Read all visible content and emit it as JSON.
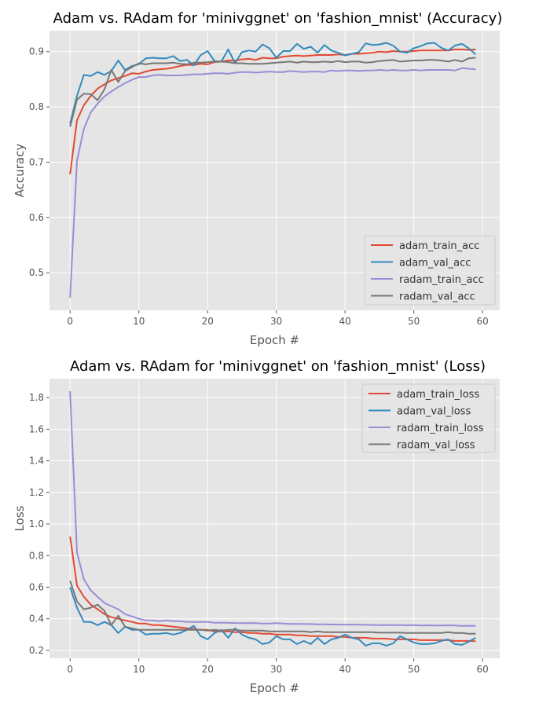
{
  "chart_data": [
    {
      "type": "line",
      "title": "Adam vs. RAdam for 'minivggnet' on 'fashion_mnist' (Accuracy)",
      "xlabel": "Epoch #",
      "ylabel": "Accuracy",
      "xlim": [
        -3,
        62.5
      ],
      "ylim": [
        0.432,
        0.938
      ],
      "xticks": [
        "0",
        "10",
        "20",
        "30",
        "40",
        "50",
        "60"
      ],
      "yticks": [
        "0.5",
        "0.6",
        "0.7",
        "0.8",
        "0.9"
      ],
      "grid": true,
      "legend": "lower-right",
      "series": [
        {
          "name": "adam_train_acc",
          "color": "#E24A33",
          "values": [
            0.678,
            0.776,
            0.803,
            0.82,
            0.833,
            0.841,
            0.848,
            0.852,
            0.856,
            0.861,
            0.86,
            0.864,
            0.867,
            0.868,
            0.869,
            0.871,
            0.874,
            0.876,
            0.876,
            0.878,
            0.877,
            0.881,
            0.882,
            0.884,
            0.884,
            0.886,
            0.887,
            0.885,
            0.889,
            0.888,
            0.888,
            0.891,
            0.892,
            0.893,
            0.892,
            0.893,
            0.894,
            0.894,
            0.894,
            0.895,
            0.894,
            0.896,
            0.896,
            0.897,
            0.898,
            0.9,
            0.899,
            0.901,
            0.9,
            0.9,
            0.901,
            0.902,
            0.902,
            0.902,
            0.902,
            0.902,
            0.904,
            0.904,
            0.903,
            0.904
          ]
        },
        {
          "name": "adam_val_acc",
          "color": "#348ABD",
          "values": [
            0.77,
            0.82,
            0.858,
            0.856,
            0.863,
            0.858,
            0.865,
            0.884,
            0.867,
            0.874,
            0.877,
            0.888,
            0.889,
            0.888,
            0.888,
            0.892,
            0.883,
            0.885,
            0.875,
            0.894,
            0.901,
            0.883,
            0.882,
            0.904,
            0.879,
            0.899,
            0.902,
            0.9,
            0.913,
            0.906,
            0.889,
            0.901,
            0.901,
            0.914,
            0.905,
            0.909,
            0.898,
            0.912,
            0.902,
            0.898,
            0.893,
            0.896,
            0.899,
            0.915,
            0.912,
            0.913,
            0.916,
            0.911,
            0.9,
            0.898,
            0.906,
            0.91,
            0.915,
            0.916,
            0.907,
            0.902,
            0.911,
            0.914,
            0.906,
            0.895
          ]
        },
        {
          "name": "radam_train_acc",
          "color": "#988ED5",
          "values": [
            0.455,
            0.703,
            0.76,
            0.79,
            0.806,
            0.819,
            0.828,
            0.836,
            0.843,
            0.849,
            0.854,
            0.854,
            0.857,
            0.858,
            0.857,
            0.857,
            0.857,
            0.858,
            0.859,
            0.859,
            0.86,
            0.861,
            0.861,
            0.86,
            0.862,
            0.863,
            0.863,
            0.862,
            0.863,
            0.864,
            0.863,
            0.863,
            0.865,
            0.864,
            0.863,
            0.864,
            0.864,
            0.863,
            0.866,
            0.865,
            0.866,
            0.866,
            0.865,
            0.866,
            0.866,
            0.867,
            0.866,
            0.867,
            0.866,
            0.866,
            0.867,
            0.866,
            0.867,
            0.867,
            0.867,
            0.867,
            0.866,
            0.87,
            0.869,
            0.868
          ]
        },
        {
          "name": "radam_val_acc",
          "color": "#777777",
          "values": [
            0.764,
            0.813,
            0.824,
            0.823,
            0.812,
            0.832,
            0.867,
            0.845,
            0.865,
            0.872,
            0.879,
            0.877,
            0.879,
            0.879,
            0.879,
            0.88,
            0.878,
            0.877,
            0.88,
            0.88,
            0.881,
            0.882,
            0.882,
            0.881,
            0.879,
            0.879,
            0.878,
            0.878,
            0.878,
            0.879,
            0.88,
            0.881,
            0.882,
            0.88,
            0.882,
            0.881,
            0.881,
            0.882,
            0.881,
            0.883,
            0.881,
            0.882,
            0.882,
            0.88,
            0.881,
            0.883,
            0.884,
            0.885,
            0.882,
            0.883,
            0.884,
            0.884,
            0.885,
            0.885,
            0.884,
            0.882,
            0.885,
            0.882,
            0.888,
            0.889
          ]
        }
      ]
    },
    {
      "type": "line",
      "title": "Adam vs. RAdam for 'minivggnet' on 'fashion_mnist' (Loss)",
      "xlabel": "Epoch #",
      "ylabel": "Loss",
      "xlim": [
        -3,
        62.5
      ],
      "ylim": [
        0.15,
        1.92
      ],
      "xticks": [
        "0",
        "10",
        "20",
        "30",
        "40",
        "50",
        "60"
      ],
      "yticks": [
        "0.2",
        "0.4",
        "0.6",
        "0.8",
        "1.0",
        "1.2",
        "1.4",
        "1.6",
        "1.8"
      ],
      "grid": true,
      "legend": "upper-right",
      "series": [
        {
          "name": "adam_train_loss",
          "color": "#E24A33",
          "values": [
            0.92,
            0.61,
            0.54,
            0.49,
            0.46,
            0.43,
            0.41,
            0.4,
            0.39,
            0.38,
            0.37,
            0.37,
            0.36,
            0.36,
            0.355,
            0.35,
            0.345,
            0.34,
            0.335,
            0.33,
            0.33,
            0.32,
            0.32,
            0.32,
            0.315,
            0.315,
            0.31,
            0.31,
            0.305,
            0.305,
            0.3,
            0.3,
            0.3,
            0.295,
            0.295,
            0.29,
            0.29,
            0.29,
            0.29,
            0.285,
            0.285,
            0.28,
            0.28,
            0.28,
            0.275,
            0.275,
            0.275,
            0.27,
            0.27,
            0.27,
            0.27,
            0.265,
            0.265,
            0.265,
            0.265,
            0.265,
            0.26,
            0.26,
            0.26,
            0.258
          ]
        },
        {
          "name": "adam_val_loss",
          "color": "#348ABD",
          "values": [
            0.6,
            0.47,
            0.38,
            0.38,
            0.36,
            0.38,
            0.36,
            0.31,
            0.35,
            0.33,
            0.33,
            0.3,
            0.305,
            0.305,
            0.31,
            0.3,
            0.31,
            0.33,
            0.355,
            0.29,
            0.27,
            0.31,
            0.33,
            0.28,
            0.34,
            0.3,
            0.28,
            0.27,
            0.24,
            0.25,
            0.29,
            0.27,
            0.27,
            0.24,
            0.26,
            0.24,
            0.28,
            0.24,
            0.27,
            0.28,
            0.3,
            0.28,
            0.27,
            0.23,
            0.245,
            0.245,
            0.23,
            0.245,
            0.29,
            0.27,
            0.25,
            0.24,
            0.24,
            0.245,
            0.26,
            0.27,
            0.24,
            0.235,
            0.255,
            0.28
          ]
        },
        {
          "name": "radam_train_loss",
          "color": "#988ED5",
          "values": [
            1.84,
            0.82,
            0.65,
            0.58,
            0.54,
            0.5,
            0.48,
            0.46,
            0.43,
            0.415,
            0.4,
            0.39,
            0.39,
            0.385,
            0.39,
            0.385,
            0.385,
            0.38,
            0.38,
            0.38,
            0.38,
            0.375,
            0.375,
            0.375,
            0.373,
            0.372,
            0.373,
            0.372,
            0.37,
            0.37,
            0.372,
            0.37,
            0.368,
            0.368,
            0.367,
            0.367,
            0.365,
            0.365,
            0.364,
            0.364,
            0.363,
            0.364,
            0.363,
            0.362,
            0.361,
            0.36,
            0.361,
            0.36,
            0.36,
            0.359,
            0.36,
            0.358,
            0.359,
            0.358,
            0.358,
            0.359,
            0.358,
            0.355,
            0.356,
            0.355
          ]
        },
        {
          "name": "radam_val_loss",
          "color": "#777777",
          "values": [
            0.64,
            0.51,
            0.46,
            0.47,
            0.49,
            0.45,
            0.36,
            0.42,
            0.35,
            0.34,
            0.33,
            0.33,
            0.33,
            0.33,
            0.33,
            0.33,
            0.33,
            0.33,
            0.33,
            0.33,
            0.325,
            0.33,
            0.325,
            0.33,
            0.33,
            0.325,
            0.325,
            0.325,
            0.325,
            0.32,
            0.32,
            0.32,
            0.32,
            0.32,
            0.32,
            0.315,
            0.32,
            0.315,
            0.315,
            0.315,
            0.315,
            0.315,
            0.315,
            0.315,
            0.315,
            0.312,
            0.312,
            0.312,
            0.312,
            0.31,
            0.31,
            0.31,
            0.31,
            0.31,
            0.31,
            0.315,
            0.31,
            0.31,
            0.305,
            0.305
          ]
        }
      ]
    }
  ]
}
